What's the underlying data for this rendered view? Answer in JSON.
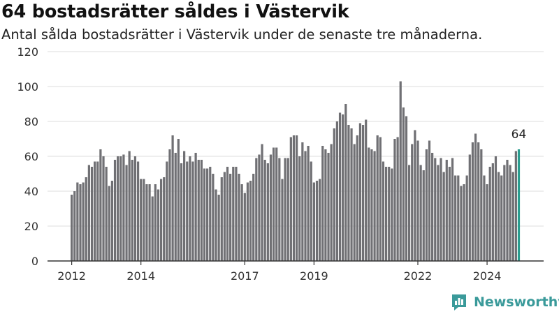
{
  "header": {
    "title": "64 bostadsrätter såldes i Västervik",
    "subtitle": "Antal sålda bostadsrätter i Västervik under de senaste tre månaderna."
  },
  "brand": {
    "name": "Newsworthy",
    "color": "#3a9a9a"
  },
  "colors": {
    "bar": "#707074",
    "highlight": "#2a9d8f",
    "grid": "#dddddd",
    "axis": "#333333"
  },
  "chart_data": {
    "type": "bar",
    "title": "64 bostadsrätter såldes i Västervik",
    "subtitle": "Antal sålda bostadsrätter i Västervik under de senaste tre månaderna.",
    "xlabel": "",
    "ylabel": "",
    "ylim": [
      0,
      120
    ],
    "yticks": [
      0,
      20,
      40,
      60,
      80,
      100,
      120
    ],
    "grid": true,
    "x_start": "2012-01",
    "x_interval": "month",
    "xticks": [
      {
        "label": "2012",
        "date": "2012-01"
      },
      {
        "label": "2014",
        "date": "2014-01"
      },
      {
        "label": "2017",
        "date": "2017-01"
      },
      {
        "label": "2019",
        "date": "2019-01"
      },
      {
        "label": "2022",
        "date": "2022-01"
      },
      {
        "label": "2024",
        "date": "2024-01"
      }
    ],
    "highlight_label": "64",
    "values": [
      38,
      40,
      45,
      44,
      45,
      48,
      55,
      54,
      57,
      57,
      64,
      60,
      54,
      43,
      46,
      58,
      60,
      60,
      61,
      55,
      63,
      58,
      60,
      57,
      47,
      47,
      44,
      44,
      37,
      44,
      41,
      47,
      48,
      57,
      64,
      72,
      62,
      70,
      56,
      63,
      57,
      60,
      57,
      62,
      58,
      58,
      53,
      53,
      54,
      50,
      41,
      38,
      48,
      51,
      54,
      50,
      54,
      54,
      50,
      44,
      39,
      45,
      46,
      50,
      59,
      61,
      67,
      58,
      56,
      61,
      65,
      65,
      59,
      47,
      59,
      59,
      71,
      72,
      72,
      60,
      68,
      63,
      66,
      57,
      45,
      46,
      47,
      66,
      64,
      62,
      67,
      76,
      80,
      85,
      84,
      90,
      78,
      76,
      67,
      72,
      79,
      78,
      81,
      65,
      64,
      63,
      72,
      71,
      57,
      54,
      54,
      53,
      70,
      71,
      103,
      88,
      83,
      55,
      67,
      75,
      69,
      55,
      52,
      64,
      69,
      62,
      59,
      55,
      59,
      51,
      58,
      54,
      59,
      49,
      49,
      43,
      44,
      49,
      61,
      68,
      73,
      68,
      64,
      49,
      44,
      54,
      56,
      60,
      51,
      49,
      55,
      58,
      55,
      51,
      63,
      64
    ]
  }
}
